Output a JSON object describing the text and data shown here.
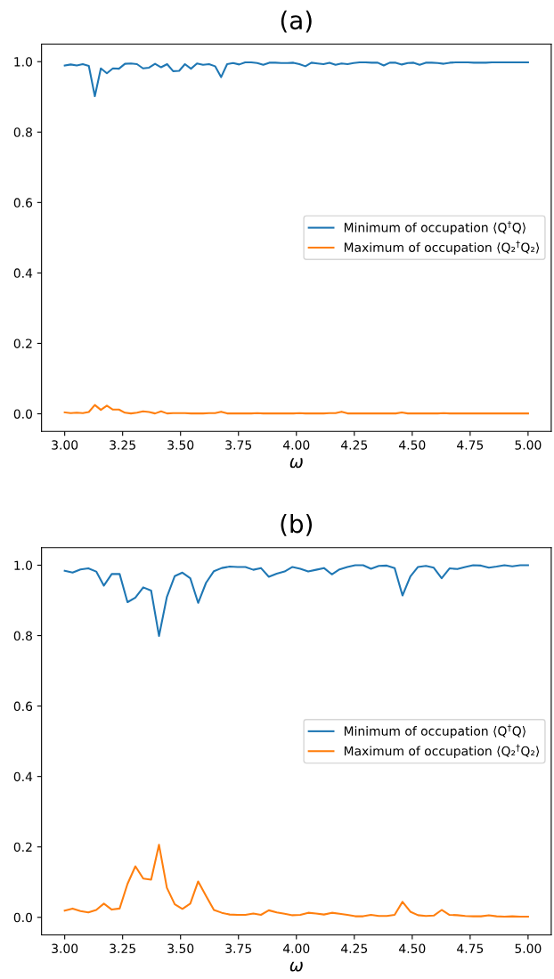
{
  "chart_data": [
    {
      "type": "line",
      "title": "(a)",
      "xlabel": "ω",
      "legend": "center right",
      "grid": false,
      "xlim": [
        2.9,
        5.1
      ],
      "ylim": [
        -0.05,
        1.05
      ],
      "xticks": [
        {
          "value": 3.0,
          "label": "3.00"
        },
        {
          "value": 3.25,
          "label": "3.25"
        },
        {
          "value": 3.5,
          "label": "3.50"
        },
        {
          "value": 3.75,
          "label": "3.75"
        },
        {
          "value": 4.0,
          "label": "4.00"
        },
        {
          "value": 4.25,
          "label": "4.25"
        },
        {
          "value": 4.5,
          "label": "4.50"
        },
        {
          "value": 4.75,
          "label": "4.75"
        },
        {
          "value": 5.0,
          "label": "5.00"
        }
      ],
      "yticks": [
        {
          "value": 0.0,
          "label": "0.0"
        },
        {
          "value": 0.2,
          "label": "0.2"
        },
        {
          "value": 0.4,
          "label": "0.4"
        },
        {
          "value": 0.6,
          "label": "0.6"
        },
        {
          "value": 0.8,
          "label": "0.8"
        },
        {
          "value": 1.0,
          "label": "1.0"
        }
      ],
      "x": [
        3.0,
        3.026,
        3.052,
        3.078,
        3.104,
        3.13,
        3.156,
        3.182,
        3.208,
        3.234,
        3.26,
        3.286,
        3.312,
        3.338,
        3.364,
        3.39,
        3.416,
        3.442,
        3.468,
        3.494,
        3.519,
        3.545,
        3.571,
        3.597,
        3.623,
        3.649,
        3.675,
        3.701,
        3.727,
        3.753,
        3.779,
        3.805,
        3.831,
        3.857,
        3.883,
        3.909,
        3.935,
        3.961,
        3.987,
        4.013,
        4.039,
        4.065,
        4.091,
        4.117,
        4.143,
        4.169,
        4.195,
        4.221,
        4.247,
        4.273,
        4.299,
        4.325,
        4.351,
        4.377,
        4.403,
        4.429,
        4.455,
        4.481,
        4.506,
        4.532,
        4.558,
        4.584,
        4.61,
        4.636,
        4.662,
        4.688,
        4.714,
        4.74,
        4.766,
        4.792,
        4.818,
        4.844,
        4.87,
        4.896,
        4.922,
        4.948,
        4.974,
        5.0
      ],
      "series": [
        {
          "name": "Minimum of occupation ⟨Q$^{†}$Q⟩",
          "color": "#1f77b4",
          "values": [
            0.989,
            0.992,
            0.989,
            0.993,
            0.988,
            0.902,
            0.981,
            0.967,
            0.981,
            0.98,
            0.994,
            0.995,
            0.993,
            0.981,
            0.983,
            0.994,
            0.984,
            0.993,
            0.973,
            0.974,
            0.993,
            0.98,
            0.995,
            0.991,
            0.993,
            0.987,
            0.956,
            0.993,
            0.996,
            0.992,
            0.998,
            0.998,
            0.996,
            0.991,
            0.997,
            0.997,
            0.996,
            0.996,
            0.997,
            0.993,
            0.987,
            0.997,
            0.995,
            0.993,
            0.997,
            0.991,
            0.995,
            0.993,
            0.996,
            0.998,
            0.998,
            0.997,
            0.997,
            0.989,
            0.997,
            0.997,
            0.992,
            0.996,
            0.997,
            0.991,
            0.997,
            0.997,
            0.996,
            0.994,
            0.997,
            0.998,
            0.998,
            0.998,
            0.997,
            0.997,
            0.997,
            0.998,
            0.998,
            0.998,
            0.998,
            0.998,
            0.998,
            0.998
          ]
        },
        {
          "name": "Maximum of occupation ⟨Q₂$^{†}$Q₂⟩",
          "color": "#ff7f0e",
          "values": [
            0.004,
            0.002,
            0.003,
            0.002,
            0.005,
            0.025,
            0.011,
            0.023,
            0.012,
            0.012,
            0.003,
            0.001,
            0.003,
            0.007,
            0.005,
            0.001,
            0.007,
            0.001,
            0.002,
            0.002,
            0.002,
            0.001,
            0.001,
            0.001,
            0.002,
            0.002,
            0.006,
            0.001,
            0.001,
            0.001,
            0.001,
            0.001,
            0.002,
            0.001,
            0.001,
            0.001,
            0.001,
            0.001,
            0.001,
            0.002,
            0.001,
            0.001,
            0.001,
            0.001,
            0.002,
            0.002,
            0.006,
            0.001,
            0.001,
            0.001,
            0.001,
            0.001,
            0.001,
            0.001,
            0.001,
            0.001,
            0.004,
            0.001,
            0.001,
            0.001,
            0.001,
            0.001,
            0.001,
            0.002,
            0.001,
            0.001,
            0.001,
            0.001,
            0.001,
            0.001,
            0.001,
            0.001,
            0.001,
            0.001,
            0.001,
            0.001,
            0.001,
            0.001
          ]
        }
      ]
    },
    {
      "type": "line",
      "title": "(b)",
      "xlabel": "ω",
      "legend": "center right",
      "grid": false,
      "xlim": [
        2.9,
        5.1
      ],
      "ylim": [
        -0.05,
        1.05
      ],
      "xticks": [
        {
          "value": 3.0,
          "label": "3.00"
        },
        {
          "value": 3.25,
          "label": "3.25"
        },
        {
          "value": 3.5,
          "label": "3.50"
        },
        {
          "value": 3.75,
          "label": "3.75"
        },
        {
          "value": 4.0,
          "label": "4.00"
        },
        {
          "value": 4.25,
          "label": "4.25"
        },
        {
          "value": 4.5,
          "label": "4.50"
        },
        {
          "value": 4.75,
          "label": "4.75"
        },
        {
          "value": 5.0,
          "label": "5.00"
        }
      ],
      "yticks": [
        {
          "value": 0.0,
          "label": "0.0"
        },
        {
          "value": 0.2,
          "label": "0.2"
        },
        {
          "value": 0.4,
          "label": "0.4"
        },
        {
          "value": 0.6,
          "label": "0.6"
        },
        {
          "value": 0.8,
          "label": "0.8"
        },
        {
          "value": 1.0,
          "label": "1.0"
        }
      ],
      "x": [
        3.0,
        3.034,
        3.068,
        3.102,
        3.136,
        3.169,
        3.203,
        3.237,
        3.271,
        3.305,
        3.339,
        3.373,
        3.407,
        3.441,
        3.475,
        3.508,
        3.542,
        3.576,
        3.61,
        3.644,
        3.678,
        3.712,
        3.746,
        3.78,
        3.814,
        3.847,
        3.881,
        3.915,
        3.949,
        3.983,
        4.017,
        4.051,
        4.085,
        4.119,
        4.153,
        4.186,
        4.22,
        4.254,
        4.288,
        4.322,
        4.356,
        4.39,
        4.424,
        4.458,
        4.492,
        4.525,
        4.559,
        4.593,
        4.627,
        4.661,
        4.695,
        4.729,
        4.763,
        4.797,
        4.831,
        4.864,
        4.898,
        4.932,
        4.966,
        5.0
      ],
      "series": [
        {
          "name": "Minimum of occupation ⟨Q$^{†}$Q⟩",
          "color": "#1f77b4",
          "values": [
            0.984,
            0.979,
            0.988,
            0.991,
            0.982,
            0.942,
            0.975,
            0.975,
            0.895,
            0.908,
            0.937,
            0.928,
            0.799,
            0.91,
            0.969,
            0.979,
            0.963,
            0.893,
            0.95,
            0.983,
            0.992,
            0.996,
            0.995,
            0.995,
            0.987,
            0.992,
            0.967,
            0.976,
            0.982,
            0.995,
            0.99,
            0.982,
            0.987,
            0.992,
            0.974,
            0.988,
            0.995,
            1.0,
            1.0,
            0.99,
            0.998,
            0.999,
            0.992,
            0.914,
            0.968,
            0.995,
            0.998,
            0.993,
            0.963,
            0.991,
            0.989,
            0.995,
            1.0,
            0.999,
            0.993,
            0.996,
            1.0,
            0.997,
            1.0,
            1.0
          ]
        },
        {
          "name": "Maximum of occupation ⟨Q₂$^{†}$Q₂⟩",
          "color": "#ff7f0e",
          "values": [
            0.019,
            0.025,
            0.018,
            0.014,
            0.021,
            0.039,
            0.022,
            0.025,
            0.095,
            0.145,
            0.11,
            0.107,
            0.206,
            0.084,
            0.037,
            0.024,
            0.039,
            0.102,
            0.061,
            0.021,
            0.013,
            0.008,
            0.007,
            0.007,
            0.011,
            0.007,
            0.02,
            0.014,
            0.01,
            0.006,
            0.007,
            0.013,
            0.011,
            0.008,
            0.013,
            0.01,
            0.007,
            0.003,
            0.003,
            0.007,
            0.004,
            0.004,
            0.007,
            0.044,
            0.016,
            0.006,
            0.004,
            0.005,
            0.021,
            0.007,
            0.006,
            0.004,
            0.003,
            0.003,
            0.006,
            0.003,
            0.002,
            0.003,
            0.002,
            0.002
          ]
        }
      ]
    }
  ]
}
